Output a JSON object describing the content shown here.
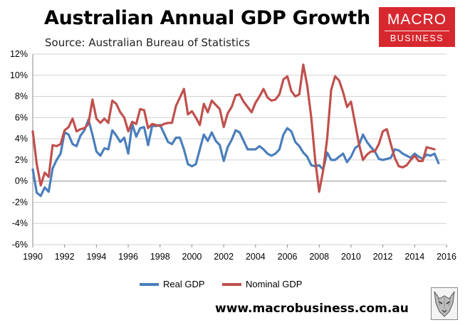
{
  "header": {
    "title": "Australian Annual GDP Growth",
    "subtitle": "Source: Australian Bureau of Statistics"
  },
  "logo": {
    "line1": "MACRO",
    "line2": "BUSINESS",
    "color": "#d7282f"
  },
  "footer": {
    "website": "www.macrobusiness.com.au"
  },
  "chart_data": {
    "type": "line",
    "title": "Australian Annual GDP Growth",
    "subtitle": "Source: Australian Bureau of Statistics",
    "xlabel": "",
    "ylabel": "",
    "xlim": [
      1990,
      2016
    ],
    "ylim": [
      -6,
      12
    ],
    "x_ticks": [
      1990,
      1992,
      1994,
      1996,
      1998,
      2000,
      2002,
      2004,
      2006,
      2008,
      2010,
      2012,
      2014,
      2016
    ],
    "x_tick_labels": [
      "1990",
      "1992",
      "1994",
      "1996",
      "1998",
      "2000",
      "2002",
      "2004",
      "2006",
      "2008",
      "2010",
      "2012",
      "2014",
      "2016"
    ],
    "y_ticks": [
      -6,
      -4,
      -2,
      0,
      2,
      4,
      6,
      8,
      10,
      12
    ],
    "y_tick_labels": [
      "-6%",
      "-4%",
      "-2%",
      "0%",
      "2%",
      "4%",
      "6%",
      "8%",
      "10%",
      "12%"
    ],
    "grid": "horizontal",
    "legend_position": "bottom",
    "series": [
      {
        "name": "Real GDP",
        "color": "#4a7ebb",
        "points": [
          [
            1990.0,
            1.1
          ],
          [
            1990.25,
            -1.1
          ],
          [
            1990.5,
            -1.4
          ],
          [
            1990.75,
            -0.6
          ],
          [
            1991.0,
            -1.0
          ],
          [
            1991.25,
            1.2
          ],
          [
            1991.5,
            2.0
          ],
          [
            1991.75,
            2.6
          ],
          [
            1992.0,
            4.6
          ],
          [
            1992.25,
            4.4
          ],
          [
            1992.5,
            3.5
          ],
          [
            1992.75,
            3.3
          ],
          [
            1993.0,
            4.3
          ],
          [
            1993.25,
            4.8
          ],
          [
            1993.5,
            5.8
          ],
          [
            1993.75,
            4.4
          ],
          [
            1994.0,
            2.8
          ],
          [
            1994.25,
            2.4
          ],
          [
            1994.5,
            3.1
          ],
          [
            1994.75,
            3.0
          ],
          [
            1995.0,
            4.8
          ],
          [
            1995.25,
            4.3
          ],
          [
            1995.5,
            3.7
          ],
          [
            1995.75,
            4.1
          ],
          [
            1996.0,
            2.6
          ],
          [
            1996.25,
            5.4
          ],
          [
            1996.5,
            4.2
          ],
          [
            1996.75,
            5.0
          ],
          [
            1997.0,
            5.1
          ],
          [
            1997.25,
            3.4
          ],
          [
            1997.5,
            5.2
          ],
          [
            1997.75,
            5.2
          ],
          [
            1998.0,
            5.3
          ],
          [
            1998.25,
            4.5
          ],
          [
            1998.5,
            3.7
          ],
          [
            1998.75,
            3.5
          ],
          [
            1999.0,
            4.1
          ],
          [
            1999.25,
            4.1
          ],
          [
            1999.5,
            3.0
          ],
          [
            1999.75,
            1.6
          ],
          [
            2000.0,
            1.4
          ],
          [
            2000.25,
            1.6
          ],
          [
            2000.5,
            3.0
          ],
          [
            2000.75,
            4.4
          ],
          [
            2001.0,
            3.8
          ],
          [
            2001.25,
            4.6
          ],
          [
            2001.5,
            3.8
          ],
          [
            2001.75,
            3.4
          ],
          [
            2002.0,
            1.9
          ],
          [
            2002.25,
            3.2
          ],
          [
            2002.5,
            3.9
          ],
          [
            2002.75,
            4.8
          ],
          [
            2003.0,
            4.6
          ],
          [
            2003.25,
            3.8
          ],
          [
            2003.5,
            3.0
          ],
          [
            2003.75,
            3.0
          ],
          [
            2004.0,
            3.0
          ],
          [
            2004.25,
            3.3
          ],
          [
            2004.5,
            3.0
          ],
          [
            2004.75,
            2.6
          ],
          [
            2005.0,
            2.4
          ],
          [
            2005.25,
            2.6
          ],
          [
            2005.5,
            3.0
          ],
          [
            2005.75,
            4.4
          ],
          [
            2006.0,
            5.0
          ],
          [
            2006.25,
            4.7
          ],
          [
            2006.5,
            3.7
          ],
          [
            2006.75,
            3.3
          ],
          [
            2007.0,
            2.7
          ],
          [
            2007.25,
            2.3
          ],
          [
            2007.5,
            1.5
          ],
          [
            2007.75,
            1.4
          ],
          [
            2008.0,
            1.5
          ],
          [
            2008.25,
            1.1
          ],
          [
            2008.5,
            2.7
          ],
          [
            2008.75,
            2.0
          ],
          [
            2009.0,
            2.0
          ],
          [
            2009.25,
            2.3
          ],
          [
            2009.5,
            2.6
          ],
          [
            2009.75,
            1.8
          ],
          [
            2010.0,
            2.3
          ],
          [
            2010.25,
            3.1
          ],
          [
            2010.5,
            3.4
          ],
          [
            2010.75,
            4.4
          ],
          [
            2011.0,
            3.7
          ],
          [
            2011.25,
            3.2
          ],
          [
            2011.5,
            2.8
          ],
          [
            2011.75,
            2.1
          ],
          [
            2012.0,
            2.0
          ],
          [
            2012.25,
            2.1
          ],
          [
            2012.5,
            2.2
          ],
          [
            2012.75,
            3.0
          ],
          [
            2013.0,
            2.9
          ],
          [
            2013.25,
            2.6
          ],
          [
            2013.5,
            2.4
          ],
          [
            2013.75,
            2.2
          ],
          [
            2014.0,
            2.6
          ],
          [
            2014.25,
            2.3
          ],
          [
            2014.5,
            2.1
          ],
          [
            2014.75,
            2.5
          ],
          [
            2015.0,
            2.4
          ],
          [
            2015.25,
            2.6
          ],
          [
            2015.5,
            1.7
          ]
        ]
      },
      {
        "name": "Nominal GDP",
        "color": "#c0504d",
        "points": [
          [
            1990.0,
            4.7
          ],
          [
            1990.25,
            1.6
          ],
          [
            1990.5,
            -0.4
          ],
          [
            1990.75,
            0.8
          ],
          [
            1991.0,
            0.4
          ],
          [
            1991.25,
            3.4
          ],
          [
            1991.5,
            3.3
          ],
          [
            1991.75,
            3.5
          ],
          [
            1992.0,
            4.8
          ],
          [
            1992.25,
            5.1
          ],
          [
            1992.5,
            5.9
          ],
          [
            1992.75,
            4.7
          ],
          [
            1993.0,
            4.9
          ],
          [
            1993.25,
            5.0
          ],
          [
            1993.5,
            5.4
          ],
          [
            1993.75,
            7.7
          ],
          [
            1994.0,
            5.9
          ],
          [
            1994.25,
            5.5
          ],
          [
            1994.5,
            5.9
          ],
          [
            1994.75,
            5.5
          ],
          [
            1995.0,
            7.6
          ],
          [
            1995.25,
            7.3
          ],
          [
            1995.5,
            6.5
          ],
          [
            1995.75,
            6.0
          ],
          [
            1996.0,
            4.7
          ],
          [
            1996.25,
            5.6
          ],
          [
            1996.5,
            5.4
          ],
          [
            1996.75,
            6.8
          ],
          [
            1997.0,
            6.7
          ],
          [
            1997.25,
            5.0
          ],
          [
            1997.5,
            5.4
          ],
          [
            1997.75,
            5.3
          ],
          [
            1998.0,
            5.2
          ],
          [
            1998.25,
            5.4
          ],
          [
            1998.5,
            5.5
          ],
          [
            1998.75,
            5.5
          ],
          [
            1999.0,
            7.1
          ],
          [
            1999.25,
            7.9
          ],
          [
            1999.5,
            8.7
          ],
          [
            1999.75,
            6.3
          ],
          [
            2000.0,
            6.6
          ],
          [
            2000.25,
            6.0
          ],
          [
            2000.5,
            5.3
          ],
          [
            2000.75,
            7.3
          ],
          [
            2001.0,
            6.5
          ],
          [
            2001.25,
            7.6
          ],
          [
            2001.5,
            7.2
          ],
          [
            2001.75,
            6.8
          ],
          [
            2002.0,
            5.1
          ],
          [
            2002.25,
            6.4
          ],
          [
            2002.5,
            7.0
          ],
          [
            2002.75,
            8.1
          ],
          [
            2003.0,
            8.2
          ],
          [
            2003.25,
            7.5
          ],
          [
            2003.5,
            7.0
          ],
          [
            2003.75,
            6.5
          ],
          [
            2004.0,
            7.4
          ],
          [
            2004.25,
            8.0
          ],
          [
            2004.5,
            8.7
          ],
          [
            2004.75,
            7.9
          ],
          [
            2005.0,
            7.6
          ],
          [
            2005.25,
            7.7
          ],
          [
            2005.5,
            8.2
          ],
          [
            2005.75,
            9.6
          ],
          [
            2006.0,
            9.9
          ],
          [
            2006.25,
            8.5
          ],
          [
            2006.5,
            8.0
          ],
          [
            2006.75,
            8.2
          ],
          [
            2007.0,
            11.0
          ],
          [
            2007.25,
            9.0
          ],
          [
            2007.5,
            6.0
          ],
          [
            2007.75,
            2.0
          ],
          [
            2008.0,
            -1.0
          ],
          [
            2008.25,
            1.0
          ],
          [
            2008.5,
            4.0
          ],
          [
            2008.75,
            8.6
          ],
          [
            2009.0,
            9.9
          ],
          [
            2009.25,
            9.5
          ],
          [
            2009.5,
            8.4
          ],
          [
            2009.75,
            7.0
          ],
          [
            2010.0,
            7.5
          ],
          [
            2010.25,
            5.5
          ],
          [
            2010.5,
            3.5
          ],
          [
            2010.75,
            2.0
          ],
          [
            2011.0,
            2.5
          ],
          [
            2011.25,
            2.8
          ],
          [
            2011.5,
            2.8
          ],
          [
            2011.75,
            3.5
          ],
          [
            2012.0,
            4.7
          ],
          [
            2012.25,
            4.9
          ],
          [
            2012.5,
            3.5
          ],
          [
            2012.75,
            2.2
          ],
          [
            2013.0,
            1.4
          ],
          [
            2013.25,
            1.3
          ],
          [
            2013.5,
            1.5
          ],
          [
            2013.75,
            2.0
          ],
          [
            2014.0,
            2.4
          ],
          [
            2014.25,
            1.9
          ],
          [
            2014.5,
            1.9
          ],
          [
            2014.75,
            3.2
          ],
          [
            2015.0,
            3.1
          ],
          [
            2015.25,
            3.0
          ]
        ]
      }
    ]
  }
}
